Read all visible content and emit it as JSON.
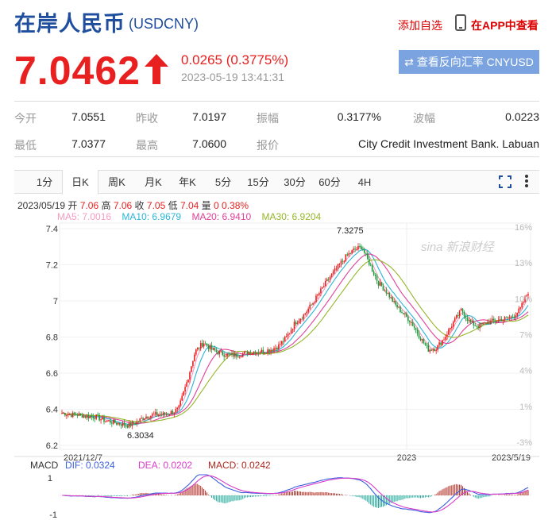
{
  "header": {
    "title": "在岸人民币",
    "code": "(USDCNY)",
    "add_fav": "添加自选",
    "app_link": "在APP中查看"
  },
  "quote": {
    "price": "7.0462",
    "change": "0.0265 (0.3775%)",
    "time": "2023-05-19 13:41:31",
    "reverse_button": "⇄ 查看反向汇率 CNYUSD",
    "direction": "up",
    "up_color": "#e8201f",
    "down_color": "#1a9a3a"
  },
  "stats": [
    {
      "label": "今开",
      "value": "7.0551"
    },
    {
      "label": "昨收",
      "value": "7.0197"
    },
    {
      "label": "振幅",
      "value": "0.3177%"
    },
    {
      "label": "波幅",
      "value": "0.0223"
    },
    {
      "label": "最低",
      "value": "7.0377"
    },
    {
      "label": "最高",
      "value": "7.0600"
    },
    {
      "label": "报价",
      "value": "City Credit Investment Bank. Labuan"
    }
  ],
  "tabs": [
    {
      "label": "1分"
    },
    {
      "label": "日K",
      "active": true
    },
    {
      "label": "周K"
    },
    {
      "label": "月K"
    },
    {
      "label": "年K"
    },
    {
      "label": "5分"
    },
    {
      "label": "15分"
    },
    {
      "label": "30分"
    },
    {
      "label": "60分"
    },
    {
      "label": "4H"
    }
  ],
  "ohlc": {
    "date": "2023/05/19",
    "open_label": "开",
    "open": "7.06",
    "high_label": "高",
    "high": "7.06",
    "close_label": "收",
    "close": "7.05",
    "low_label": "低",
    "low": "7.04",
    "vol_label": "量",
    "vol": "0",
    "pct": "0.38%"
  },
  "ma": [
    {
      "label": "MA5: 7.0016",
      "color": "#f59bc0"
    },
    {
      "label": "MA10: 6.9679",
      "color": "#2bb5d8"
    },
    {
      "label": "MA20: 6.9410",
      "color": "#e0409a"
    },
    {
      "label": "MA30: 6.9204",
      "color": "#95b62a"
    }
  ],
  "chart_data": {
    "type": "candlestick",
    "y_ticks": [
      "7.4",
      "7.2",
      "7",
      "6.8",
      "6.6",
      "6.4",
      "6.2"
    ],
    "pct_ticks": [
      "16%",
      "13%",
      "10%",
      "7%",
      "4%",
      "1%",
      "-3%"
    ],
    "ylim": [
      6.2,
      7.4
    ],
    "x_labels": [
      "2021/12/7",
      "2023",
      "2023/5/19"
    ],
    "annotations": [
      {
        "label": "7.3275",
        "kind": "max"
      },
      {
        "label": "6.3034",
        "kind": "min"
      }
    ],
    "watermark": "sina 新浪财经",
    "close_path": [
      6.38,
      6.37,
      6.37,
      6.36,
      6.36,
      6.34,
      6.33,
      6.32,
      6.31,
      6.33,
      6.36,
      6.37,
      6.37,
      6.38,
      6.4,
      6.55,
      6.72,
      6.77,
      6.73,
      6.71,
      6.7,
      6.7,
      6.71,
      6.72,
      6.72,
      6.73,
      6.75,
      6.8,
      6.88,
      6.92,
      6.98,
      7.05,
      7.12,
      7.18,
      7.24,
      7.28,
      7.3,
      7.2,
      7.1,
      7.05,
      6.98,
      6.93,
      6.88,
      6.8,
      6.73,
      6.74,
      6.8,
      6.88,
      6.95,
      6.88,
      6.86,
      6.88,
      6.89,
      6.9,
      6.91,
      6.95,
      7.05
    ],
    "macd": {
      "title": "MACD",
      "dif": "DIF: 0.0324",
      "dea": "DEA: 0.0202",
      "macd": "MACD: 0.0242",
      "y_ticks": [
        "1",
        "-1"
      ],
      "dif_color": "#3b5fe0",
      "dea_color": "#d93cc8",
      "macd_color": "#b0291f"
    }
  }
}
